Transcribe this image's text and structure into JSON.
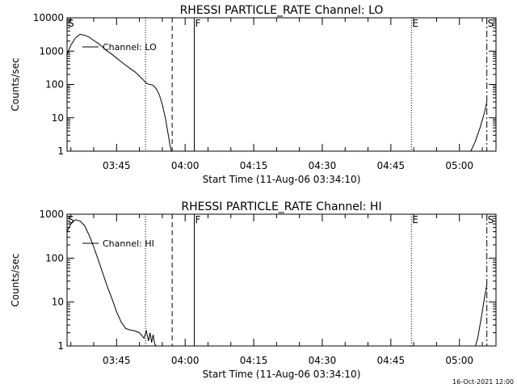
{
  "chart_data": [
    {
      "type": "line",
      "title": "RHESSI PARTICLE_RATE Channel: LO",
      "xlabel": "Start Time (11-Aug-06 03:34:10)",
      "ylabel": "Counts/sec",
      "yscale": "log",
      "ylim": [
        1,
        10000
      ],
      "xlim": [
        "03:34:10",
        "05:08:00"
      ],
      "grid": false,
      "legend": {
        "placement": "top-left",
        "entries": [
          "Channel: LO"
        ]
      },
      "x_ticks": [
        "03:45",
        "04:00",
        "04:15",
        "04:30",
        "04:45",
        "05:00"
      ],
      "y_ticks": [
        "1",
        "10",
        "100",
        "1000",
        "10000"
      ],
      "markers": [
        {
          "label": "S",
          "time": "03:34:10",
          "style": "solid"
        },
        {
          "label": "",
          "time": "03:51:20",
          "style": "dotted"
        },
        {
          "label": "",
          "time": "03:57:10",
          "style": "dashed"
        },
        {
          "label": "F",
          "time": "04:02:00",
          "style": "solid"
        },
        {
          "label": "E",
          "time": "04:49:30",
          "style": "dotted"
        },
        {
          "label": "S",
          "time": "05:06:00",
          "style": "dashdot"
        }
      ],
      "series": [
        {
          "segments": [
            {
              "x": [
                "03:34:10",
                "03:35:00",
                "03:36:00",
                "03:37:00",
                "03:38:00",
                "03:39:00",
                "03:40:00",
                "03:41:00",
                "03:42:00",
                "03:43:00",
                "03:44:00",
                "03:45:00",
                "03:46:00",
                "03:47:00",
                "03:48:00",
                "03:49:00",
                "03:50:00",
                "03:51:00",
                "03:51:40",
                "03:52:20",
                "03:53:00",
                "03:53:40",
                "03:54:20",
                "03:55:00",
                "03:55:40",
                "03:56:10",
                "03:56:40",
                "03:57:00"
              ],
              "y": [
                800,
                1500,
                2500,
                3200,
                3000,
                2600,
                2100,
                1700,
                1300,
                1000,
                800,
                620,
                480,
                380,
                300,
                240,
                180,
                130,
                105,
                100,
                95,
                75,
                50,
                25,
                10,
                4,
                1.6,
                1
              ]
            },
            {
              "x": [
                "05:02:30",
                "05:03:30",
                "05:04:30",
                "05:05:30",
                "05:06:00"
              ],
              "y": [
                1,
                2,
                5,
                15,
                30
              ]
            }
          ]
        }
      ]
    },
    {
      "type": "line",
      "title": "RHESSI PARTICLE_RATE Channel: HI",
      "xlabel": "Start Time (11-Aug-06 03:34:10)",
      "ylabel": "Counts/sec",
      "yscale": "log",
      "ylim": [
        1,
        1000
      ],
      "xlim": [
        "03:34:10",
        "05:08:00"
      ],
      "grid": false,
      "legend": {
        "placement": "top-left",
        "entries": [
          "Channel: HI"
        ]
      },
      "x_ticks": [
        "03:45",
        "04:00",
        "04:15",
        "04:30",
        "04:45",
        "05:00"
      ],
      "y_ticks": [
        "1",
        "10",
        "100",
        "1000"
      ],
      "markers": [
        {
          "label": "S",
          "time": "03:34:10",
          "style": "solid"
        },
        {
          "label": "",
          "time": "03:51:20",
          "style": "dotted"
        },
        {
          "label": "",
          "time": "03:57:10",
          "style": "dashed"
        },
        {
          "label": "F",
          "time": "04:02:00",
          "style": "solid"
        },
        {
          "label": "E",
          "time": "04:49:30",
          "style": "dotted"
        },
        {
          "label": "S",
          "time": "05:06:00",
          "style": "dashdot"
        }
      ],
      "series": [
        {
          "segments": [
            {
              "x": [
                "03:34:10",
                "03:35:00",
                "03:36:00",
                "03:37:00",
                "03:38:00",
                "03:39:00",
                "03:40:00",
                "03:41:00",
                "03:42:00",
                "03:43:00",
                "03:44:00",
                "03:45:00",
                "03:46:00",
                "03:47:00",
                "03:48:00",
                "03:49:00",
                "03:50:00",
                "03:51:00",
                "03:51:30",
                "03:52:00",
                "03:52:20",
                "03:52:40",
                "03:53:00",
                "03:53:20",
                "03:53:40"
              ],
              "y": [
                400,
                600,
                750,
                700,
                550,
                330,
                180,
                90,
                45,
                22,
                12,
                6,
                3.5,
                2.5,
                2.3,
                2.2,
                2,
                1.5,
                2.2,
                1.3,
                2.0,
                1.2,
                1.8,
                1.1,
                1
              ]
            },
            {
              "x": [
                "05:03:30",
                "05:04:00",
                "05:04:30",
                "05:05:00",
                "05:05:30",
                "05:06:00"
              ],
              "y": [
                1,
                1.5,
                3,
                6,
                13,
                25
              ]
            }
          ]
        }
      ]
    }
  ],
  "footer": {
    "timestamp": "16-Oct-2021 12:00"
  }
}
